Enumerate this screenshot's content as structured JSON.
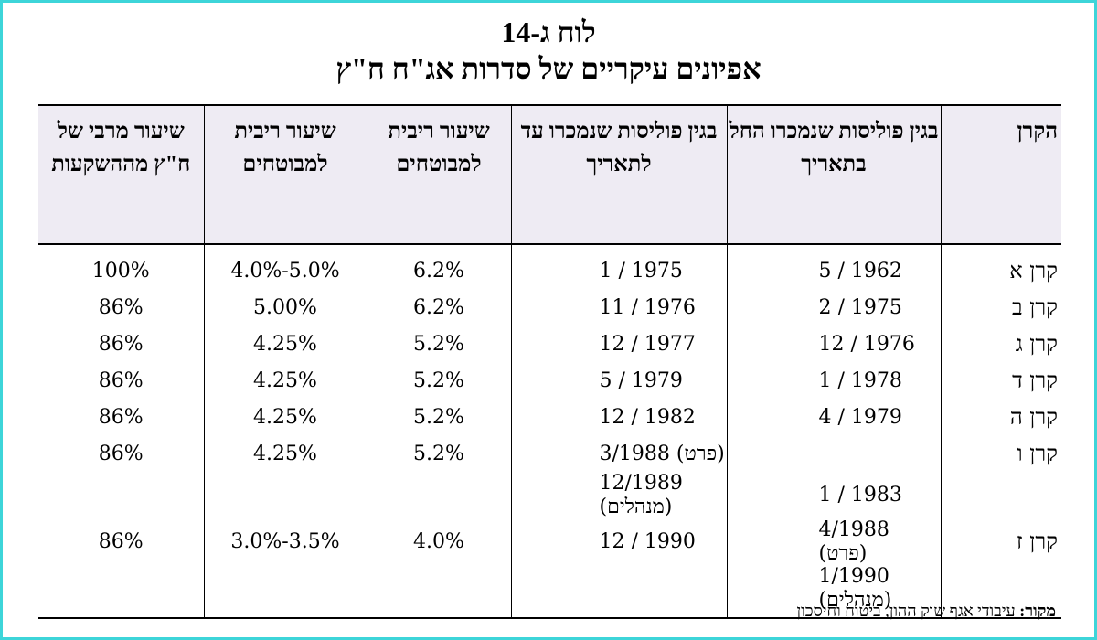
{
  "title_line1": "לוח ג-14",
  "title_line2": "אפיונים עיקריים של סדרות אג\"ח ח\"ץ",
  "headers": {
    "fund": "הקרן",
    "sold_from": "בגין פוליסות שנמכרו החל בתאריך",
    "sold_until": "בגין פוליסות שנמכרו עד לתאריך",
    "rate_insured_1": "שיעור ריבית למבוטחים",
    "rate_insured_2": "שיעור ריבית למבוטחים",
    "max_rate": "שיעור מרבי של ח\"ץ מההשקעות"
  },
  "rows": [
    {
      "fund": "קרן א",
      "from": "5 / 1962",
      "until": "1 / 1975",
      "rate1": "6.2%",
      "rate2": "5.0%-4.0%",
      "max": "100%"
    },
    {
      "fund": "קרן ב",
      "from": "2 / 1975",
      "until": "11 / 1976",
      "rate1": "6.2%",
      "rate2": "5.00%",
      "max": "86%"
    },
    {
      "fund": "קרן ג",
      "from": "12 / 1976",
      "until": "12 / 1977",
      "rate1": "5.2%",
      "rate2": "4.25%",
      "max": "86%"
    },
    {
      "fund": "קרן ד",
      "from": "1 / 1978",
      "until": "5 / 1979",
      "rate1": "5.2%",
      "rate2": "4.25%",
      "max": "86%"
    },
    {
      "fund": "קרן ה",
      "from": "4 / 1979",
      "until": "12 / 1982",
      "rate1": "5.2%",
      "rate2": "4.25%",
      "max": "86%"
    },
    {
      "fund": "קרן ו",
      "from": "",
      "until": "3/1988 (פרט)",
      "rate1": "5.2%",
      "rate2": "4.25%",
      "max": "86%"
    },
    {
      "fund": "",
      "from": "1 / 1983",
      "until": "12/1989 (מנהלים)",
      "rate1": "",
      "rate2": "",
      "max": ""
    },
    {
      "fund": "קרן ז",
      "from": "4/1988 (פרט)",
      "until": "12 / 1990",
      "rate1": "4.0%",
      "rate2": "3.5%-3.0%",
      "max": "86%"
    },
    {
      "fund": "",
      "from": "1/1990 (מנהלים)",
      "until": "",
      "rate1": "",
      "rate2": "",
      "max": ""
    }
  ],
  "source_label": "מקור:",
  "source_text": "עיבודי אגף שוק ההון, ביטוח וחיסכון"
}
